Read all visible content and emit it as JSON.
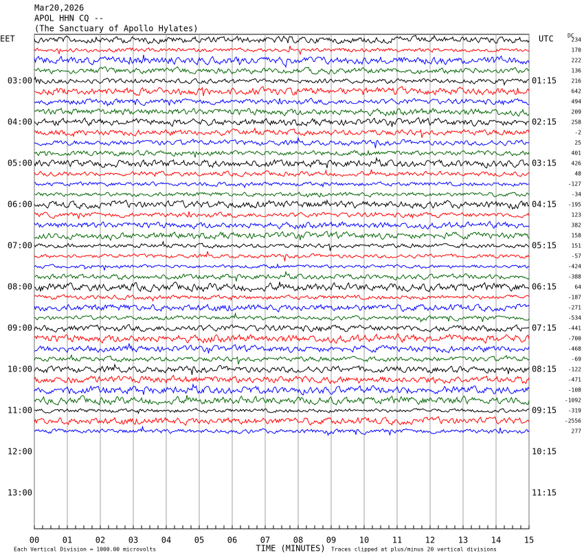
{
  "header": {
    "date": "Mar20,2026",
    "station": "APOL HHN CQ --",
    "site": "(The Sanctuary of Apollo Hylates)",
    "left_zone": "EET",
    "right_zone": "UTC",
    "dc_label": "DC"
  },
  "left_times": [
    "03:00",
    "04:00",
    "05:00",
    "06:00",
    "07:00",
    "08:00",
    "09:00",
    "10:00",
    "11:00",
    "12:00",
    "13:00"
  ],
  "right_times": [
    "01:15",
    "02:15",
    "03:15",
    "04:15",
    "05:15",
    "06:15",
    "07:15",
    "08:15",
    "09:15",
    "10:15",
    "11:15"
  ],
  "dc_offsets": [
    234,
    170,
    222,
    136,
    216,
    642,
    494,
    209,
    258,
    -2,
    25,
    401,
    426,
    48,
    -127,
    -34,
    -195,
    123,
    382,
    158,
    151,
    -57,
    -424,
    -388,
    64,
    -187,
    -271,
    -534,
    -441,
    -700,
    -468,
    -69,
    -122,
    -471,
    -108,
    -1092,
    -319,
    -2556,
    277
  ],
  "x_ticks": [
    "00",
    "01",
    "02",
    "03",
    "04",
    "05",
    "06",
    "07",
    "08",
    "09",
    "10",
    "11",
    "12",
    "13",
    "14",
    "15"
  ],
  "x_label": "TIME (MINUTES)",
  "footer_left": "Each Vertical Division = 1000.00 microvolts",
  "footer_right": "Traces clipped at plus/minus 20 vertical divisions",
  "trace_colors": [
    "#000000",
    "#ff0000",
    "#0000ff",
    "#006400"
  ]
}
